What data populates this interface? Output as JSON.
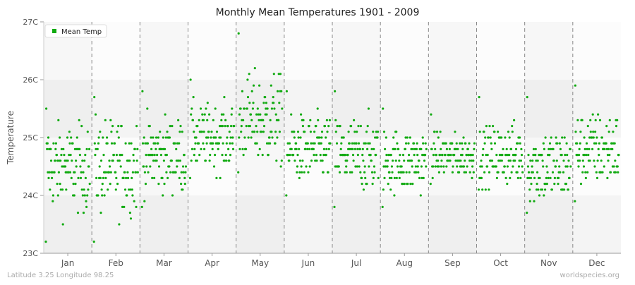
{
  "chart_data": {
    "type": "scatter",
    "title": "Monthly Mean Temperatures 1901 - 2009",
    "xlabel": "",
    "ylabel": "Temperature",
    "ylim": [
      23,
      27
    ],
    "yticks": [
      "23C",
      "24C",
      "25C",
      "26C",
      "27C"
    ],
    "categories": [
      "Jan",
      "Feb",
      "Mar",
      "Apr",
      "May",
      "Jun",
      "Jul",
      "Aug",
      "Sep",
      "Oct",
      "Nov",
      "Dec"
    ],
    "legend": {
      "position": "top-left",
      "entries": [
        "Mean Temp"
      ]
    },
    "grid": true,
    "series": [
      {
        "name": "Mean Temp",
        "color": "#11aa11",
        "points_per_month": 109,
        "monthly_summary": [
          {
            "month": "Jan",
            "min": 23.2,
            "max": 25.5,
            "typical": 24.5
          },
          {
            "month": "Feb",
            "min": 23.2,
            "max": 25.7,
            "typical": 24.5
          },
          {
            "month": "Mar",
            "min": 23.8,
            "max": 25.8,
            "typical": 24.7
          },
          {
            "month": "Apr",
            "min": 24.3,
            "max": 26.0,
            "typical": 25.0
          },
          {
            "month": "May",
            "min": 24.4,
            "max": 26.8,
            "typical": 25.3
          },
          {
            "month": "Jun",
            "min": 24.0,
            "max": 25.8,
            "typical": 24.8
          },
          {
            "month": "Jul",
            "min": 23.8,
            "max": 25.8,
            "typical": 24.7
          },
          {
            "month": "Aug",
            "min": 23.8,
            "max": 25.5,
            "typical": 24.6
          },
          {
            "month": "Sep",
            "min": 24.2,
            "max": 25.4,
            "typical": 24.7
          },
          {
            "month": "Oct",
            "min": 24.1,
            "max": 25.7,
            "typical": 24.7
          },
          {
            "month": "Nov",
            "min": 23.7,
            "max": 25.7,
            "typical": 24.5
          },
          {
            "month": "Dec",
            "min": 23.9,
            "max": 25.9,
            "typical": 24.8
          }
        ]
      }
    ]
  },
  "footer": {
    "left": "Latitude 3.25 Longitude 98.25",
    "right": "worldspecies.org"
  }
}
